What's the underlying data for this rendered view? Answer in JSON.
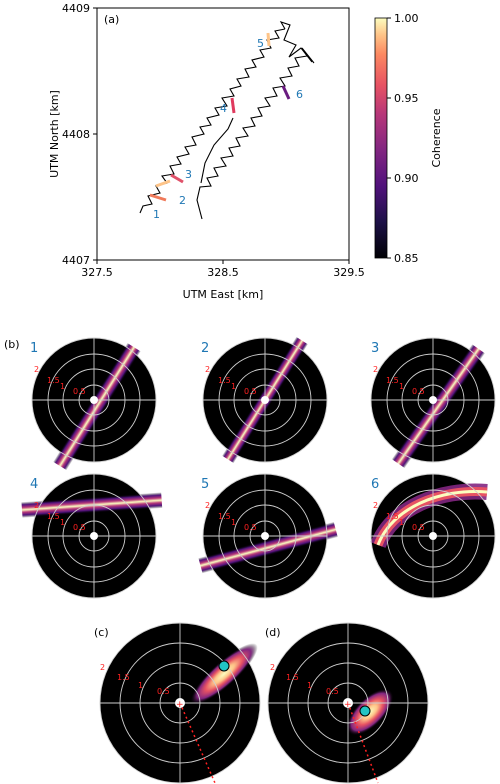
{
  "panel_a": {
    "label": "(a)",
    "xlabel": "UTM East [km]",
    "ylabel": "UTM North [km]",
    "xticks": [
      "327.5",
      "328.5",
      "329.5"
    ],
    "yticks": [
      "4407",
      "4408",
      "4409"
    ],
    "colorbar": {
      "label": "Coherence",
      "ticks": [
        "0.85",
        "0.90",
        "0.95",
        "1.00"
      ]
    },
    "track_labels": [
      "1",
      "2",
      "3",
      "4",
      "5",
      "6"
    ]
  },
  "panel_b": {
    "label": "(b)",
    "numbers": [
      "1",
      "2",
      "3",
      "4",
      "5",
      "6"
    ],
    "ring_labels": [
      "2",
      "1.5",
      "1",
      "0.5"
    ]
  },
  "panel_c": {
    "label": "(c)"
  },
  "panel_d": {
    "label": "(d)"
  },
  "chart_data": [
    {
      "type": "line",
      "xlabel": "UTM East [km]",
      "ylabel": "UTM North [km]",
      "xlim": [
        327.5,
        329.5
      ],
      "ylim": [
        4407,
        4409
      ],
      "colorbar_range": [
        0.85,
        1.0
      ],
      "segments": [
        {
          "label": "1",
          "coherence": 0.97
        },
        {
          "label": "2",
          "coherence": 0.99
        },
        {
          "label": "3",
          "coherence": 0.95
        },
        {
          "label": "4",
          "coherence": 0.94
        },
        {
          "label": "5",
          "coherence": 0.99
        },
        {
          "label": "6",
          "coherence": 0.88
        }
      ]
    }
  ],
  "colors": {
    "track": "#000000",
    "label_blue": "#1f77b4",
    "ring_red": "#ff2020"
  }
}
